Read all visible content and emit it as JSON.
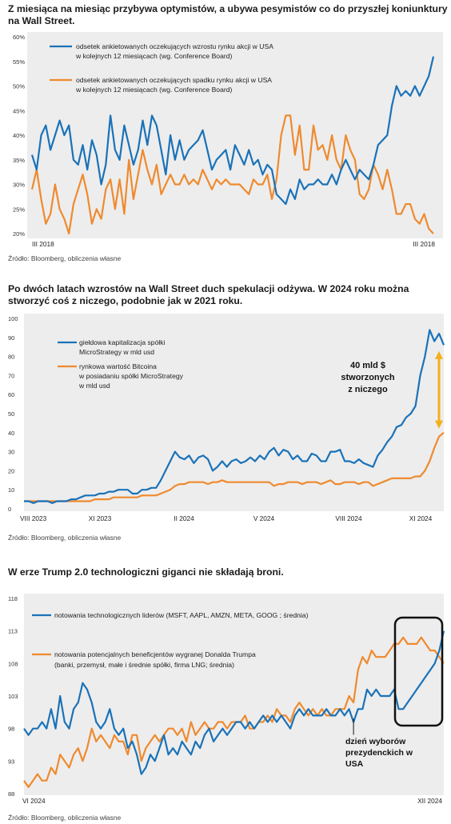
{
  "colors": {
    "blue": "#1a72b8",
    "orange": "#ef8a2e",
    "panel": "#ededed",
    "gold": "#f2b01c"
  },
  "chart_data": [
    {
      "type": "line",
      "title": "Z miesiąca na miesiąc przybywa optymistów, a ubywa pesymistów co do przyszłej koniunktury na Wall Street.",
      "source": "Źródło: Bloomberg, obliczenia własne",
      "ylim": [
        20,
        60
      ],
      "yticks": [
        "60%",
        "55%",
        "50%",
        "45%",
        "40%",
        "35%",
        "30%",
        "25%",
        "20%"
      ],
      "ytick_values": [
        60,
        55,
        50,
        45,
        40,
        35,
        30,
        25,
        20
      ],
      "xticks": [
        "III 2018",
        "III 2018"
      ],
      "legend_placement": "top-left",
      "series": [
        {
          "name": "odsetek ankietowanych oczekujących wzrostu rynku akcji w USA w kolejnych 12 miesiącach (wg. Conference Board)",
          "legend_lines": [
            "odsetek ankietowanych oczekujących wzrostu rynku akcji w USA",
            "w kolejnych 12 miesiącach (wg. Conference Board)"
          ],
          "values": [
            36,
            33,
            40,
            42,
            37,
            40,
            43,
            40,
            42,
            35,
            34,
            38,
            33,
            39,
            36,
            30,
            34,
            44,
            37,
            35,
            42,
            38,
            34,
            37,
            43,
            38,
            44,
            42,
            37,
            32,
            40,
            35,
            39,
            35,
            37,
            38,
            39,
            41,
            37,
            33,
            35,
            36,
            37,
            33,
            38,
            36,
            34,
            37,
            34,
            35,
            32,
            34,
            33,
            28,
            27,
            26,
            29,
            27,
            31,
            29,
            30,
            30,
            31,
            30,
            30,
            32,
            30,
            33,
            35,
            33,
            31,
            33,
            32,
            31,
            34,
            38,
            39,
            40,
            46,
            50,
            48,
            49,
            48,
            50,
            48,
            50,
            52,
            56
          ]
        },
        {
          "name": "odsetek ankietowanych oczekujących spadku rynku akcji w USA w kolejnych 12 miesiącach (wg. Conference Board)",
          "legend_lines": [
            "odsetek ankietowanych oczekujących spadku rynku akcji w USA",
            "w kolejnych 12 miesiącach (wg. Conference Board)"
          ],
          "values": [
            29,
            33,
            27,
            22,
            24,
            30,
            25,
            23,
            20,
            26,
            29,
            32,
            28,
            22,
            25,
            23,
            29,
            31,
            25,
            31,
            24,
            35,
            27,
            32,
            37,
            33,
            30,
            34,
            28,
            30,
            32,
            30,
            30,
            32,
            30,
            31,
            30,
            33,
            31,
            29,
            31,
            30,
            31,
            30,
            30,
            30,
            29,
            28,
            31,
            30,
            30,
            32,
            27,
            31,
            40,
            44,
            44,
            36,
            42,
            33,
            33,
            42,
            37,
            38,
            35,
            40,
            35,
            33,
            40,
            37,
            35,
            28,
            27,
            29,
            34,
            32,
            29,
            33,
            29,
            24,
            24,
            26,
            26,
            23,
            22,
            24,
            21,
            20
          ]
        }
      ]
    },
    {
      "type": "line",
      "title": "Po dwóch latach wzrostów na Wall Street duch spekulacji odżywa. W 2024 roku można stworzyć coś z niczego, podobnie jak w 2021 roku.",
      "source": "Źródło: Bloomberg, obliczenia własne",
      "ylim": [
        0,
        100
      ],
      "yticks": [
        "100",
        "90",
        "80",
        "70",
        "60",
        "50",
        "40",
        "30",
        "20",
        "10",
        "0"
      ],
      "ytick_values": [
        100,
        90,
        80,
        70,
        60,
        50,
        40,
        30,
        20,
        10,
        0
      ],
      "xticks": [
        "VIII 2023",
        "XI 2023",
        "II 2024",
        "V 2024",
        "VIII 2024",
        "XI 2024"
      ],
      "legend_placement": "top-left",
      "annotation": "40 mld $ stworzonych z niczego",
      "annotation_lines": [
        "40 mld $",
        "stworzonych",
        "z niczego"
      ],
      "series": [
        {
          "name": "giełdowa kapitalizacja spółki MicroStrategy w mld usd",
          "legend_lines": [
            "giełdowa kapitalizacja spółki",
            "MicroStrategy w mld usd"
          ],
          "values": [
            4,
            4,
            3,
            4,
            4,
            4,
            3,
            4,
            4,
            4,
            5,
            5,
            6,
            7,
            7,
            7,
            8,
            8,
            9,
            9,
            10,
            10,
            10,
            8,
            8,
            10,
            10,
            11,
            11,
            15,
            20,
            25,
            30,
            27,
            26,
            28,
            24,
            27,
            28,
            26,
            20,
            22,
            25,
            22,
            25,
            26,
            24,
            25,
            27,
            25,
            28,
            26,
            30,
            32,
            28,
            31,
            30,
            26,
            28,
            25,
            25,
            29,
            28,
            25,
            25,
            30,
            30,
            31,
            25,
            25,
            24,
            26,
            24,
            23,
            22,
            28,
            31,
            35,
            38,
            43,
            44,
            48,
            50,
            54,
            70,
            80,
            94,
            88,
            92,
            86
          ]
        },
        {
          "name": "rynkowa wartość Bitcoina w posiadaniu spółki MicroStrategy w mld usd",
          "legend_lines": [
            "rynkowa wartość Bitcoina",
            "w posiadaniu spółki MicroStrategy",
            "w mld usd"
          ],
          "values": [
            4,
            4,
            4,
            4,
            4,
            4,
            4,
            4,
            4,
            4,
            4,
            4,
            4,
            4,
            4,
            5,
            5,
            5,
            5,
            6,
            6,
            6,
            6,
            6,
            6,
            7,
            7,
            7,
            7,
            8,
            9,
            10,
            12,
            13,
            13,
            14,
            14,
            14,
            14,
            13,
            14,
            14,
            15,
            14,
            14,
            14,
            14,
            14,
            14,
            14,
            14,
            14,
            14,
            12,
            13,
            13,
            14,
            14,
            14,
            13,
            14,
            14,
            14,
            13,
            14,
            15,
            13,
            13,
            14,
            14,
            14,
            13,
            14,
            14,
            12,
            13,
            14,
            15,
            16,
            16,
            16,
            16,
            16,
            17,
            17,
            20,
            25,
            32,
            38,
            40
          ]
        }
      ]
    },
    {
      "type": "line",
      "title": "W erze Trump 2.0 technologiczni giganci nie składają broni.",
      "source": "Źródło: Bloomberg, obliczenia własne",
      "ylim": [
        88,
        118
      ],
      "yticks": [
        "118",
        "113",
        "108",
        "103",
        "98",
        "93",
        "88"
      ],
      "ytick_values": [
        118,
        113,
        108,
        103,
        98,
        93,
        88
      ],
      "xticks": [
        "VI 2024",
        "XII 2024"
      ],
      "legend_placement": "top-left",
      "annotation": "dzień wyborów prezydenckich w USA",
      "annotation_lines": [
        "dzień wyborów",
        "prezydenckich w",
        "USA"
      ],
      "series": [
        {
          "name": "notowania technologicznych liderów (MSFT, AAPL, AMZN, META, GOOG ; średnia)",
          "legend_lines": [
            "notowania technologicznych liderów (MSFT, AAPL, AMZN, META, GOOG ; średnia)"
          ],
          "values": [
            98,
            97,
            98,
            98,
            99,
            98,
            101,
            98,
            103,
            99,
            98,
            101,
            102,
            105,
            104,
            102,
            99,
            98,
            99,
            101,
            98,
            97,
            98,
            95,
            96,
            94,
            91,
            92,
            94,
            93,
            95,
            97,
            94,
            95,
            94,
            96,
            95,
            94,
            96,
            95,
            97,
            98,
            96,
            97,
            98,
            97,
            98,
            99,
            99,
            98,
            99,
            98,
            99,
            100,
            99,
            100,
            99,
            100,
            99,
            98,
            100,
            101,
            100,
            101,
            100,
            100,
            100,
            101,
            100,
            100,
            101,
            100,
            101,
            99,
            101,
            101,
            104,
            103,
            104,
            103,
            103,
            103,
            104,
            101,
            101,
            102,
            103,
            104,
            105,
            106,
            107,
            108,
            110,
            113
          ]
        },
        {
          "name": "notowania potencjalnych beneficjentów wygranej Donalda Trumpa (banki, przemysł, małe i średnie spółki, firma LNG; średnia)",
          "legend_lines": [
            "notowania potencjalnych beneficjentów wygranej Donalda Trumpa",
            "(banki, przemysł, małe i średnie spółki, firma LNG; średnia)"
          ],
          "values": [
            90,
            89,
            90,
            91,
            90,
            90,
            92,
            91,
            94,
            93,
            92,
            94,
            95,
            93,
            95,
            98,
            96,
            97,
            96,
            95,
            97,
            96,
            96,
            94,
            97,
            97,
            93,
            95,
            96,
            97,
            96,
            97,
            98,
            98,
            97,
            98,
            96,
            99,
            97,
            98,
            99,
            98,
            98,
            99,
            99,
            98,
            99,
            99,
            99,
            100,
            98,
            98,
            99,
            99,
            100,
            99,
            101,
            100,
            100,
            99,
            101,
            102,
            101,
            100,
            101,
            100,
            101,
            100,
            100,
            101,
            101,
            101,
            103,
            102,
            107,
            109,
            108,
            110,
            109,
            109,
            109,
            110,
            111,
            111,
            112,
            111,
            111,
            111,
            112,
            111,
            110,
            110,
            109,
            108
          ]
        }
      ]
    }
  ]
}
